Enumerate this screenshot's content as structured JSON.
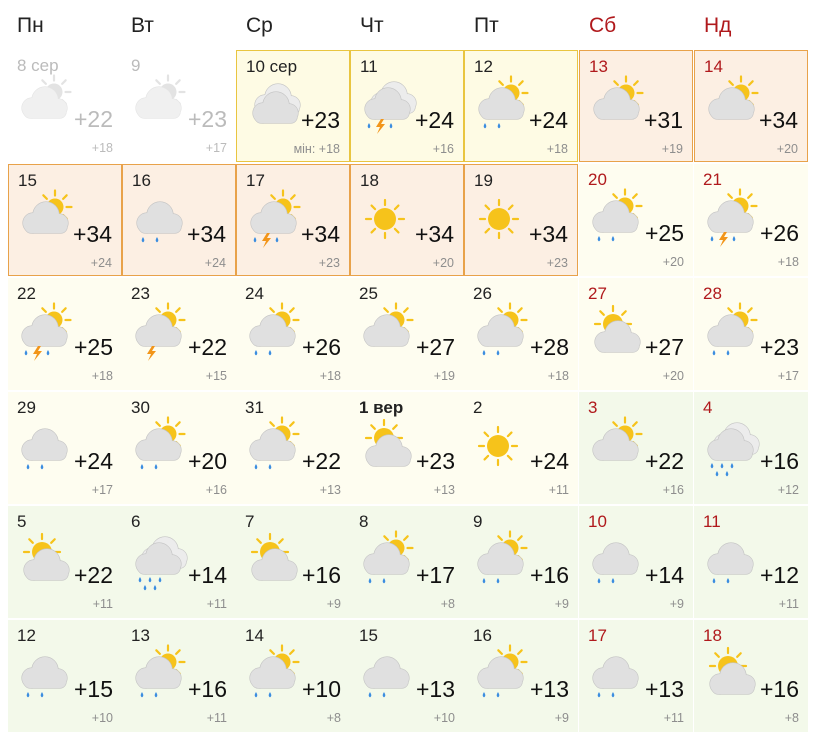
{
  "weekdays": [
    {
      "label": "Пн",
      "weekend": false
    },
    {
      "label": "Вт",
      "weekend": false
    },
    {
      "label": "Ср",
      "weekend": false
    },
    {
      "label": "Чт",
      "weekend": false
    },
    {
      "label": "Пт",
      "weekend": false
    },
    {
      "label": "Сб",
      "weekend": true
    },
    {
      "label": "Нд",
      "weekend": true
    }
  ],
  "colors": {
    "yellow_bg": "#fefbe4",
    "light_yellow_bg": "#fefdf0",
    "orange_bg": "#fcefe3",
    "green_bg": "#f3f9ea",
    "yellow_border": "#e9c540",
    "orange_border": "#e8a24a",
    "weekend_red": "#b0191c",
    "sun": "#f6c31b",
    "cloud": "#e0e0e0",
    "rain": "#3b8de0",
    "bolt": "#f2951a"
  },
  "days": [
    {
      "date": "8 сер",
      "max": "+22",
      "min": "+18",
      "icon": "partly-cloudy-sun-icon",
      "past": true,
      "bg": "#ffffff"
    },
    {
      "date": "9",
      "max": "+23",
      "min": "+17",
      "icon": "partly-cloudy-sun-icon",
      "past": true,
      "bg": "#ffffff"
    },
    {
      "date": "10 сер",
      "max": "+23",
      "min": "мін: +18",
      "icon": "cloudy-icon",
      "bg": "#fefbe4",
      "hl": "y"
    },
    {
      "date": "11",
      "max": "+24",
      "min": "+16",
      "icon": "thunderstorm-icon",
      "bg": "#fefbe4",
      "hl": "y"
    },
    {
      "date": "12",
      "max": "+24",
      "min": "+18",
      "icon": "sun-cloud-rain-icon",
      "bg": "#fefbe4",
      "hl": "y"
    },
    {
      "date": "13",
      "max": "+31",
      "min": "+19",
      "icon": "cloud-sun-icon",
      "bg": "#fcefe3",
      "hl": "o",
      "weekend": true
    },
    {
      "date": "14",
      "max": "+34",
      "min": "+20",
      "icon": "cloud-sun-icon",
      "bg": "#fcefe3",
      "hl": "o",
      "weekend": true
    },
    {
      "date": "15",
      "max": "+34",
      "min": "+24",
      "icon": "cloud-sun-icon",
      "bg": "#fcefe3",
      "hl": "o"
    },
    {
      "date": "16",
      "max": "+34",
      "min": "+24",
      "icon": "cloud-rain-icon",
      "bg": "#fcefe3",
      "hl": "o"
    },
    {
      "date": "17",
      "max": "+34",
      "min": "+23",
      "icon": "sun-thunderstorm-icon",
      "bg": "#fcefe3",
      "hl": "o"
    },
    {
      "date": "18",
      "max": "+34",
      "min": "+20",
      "icon": "sun-icon",
      "bg": "#fcefe3",
      "hl": "o"
    },
    {
      "date": "19",
      "max": "+34",
      "min": "+23",
      "icon": "sun-icon",
      "bg": "#fcefe3",
      "hl": "o"
    },
    {
      "date": "20",
      "max": "+25",
      "min": "+20",
      "icon": "sun-cloud-rain-icon",
      "bg": "#fefdf0",
      "weekend": true
    },
    {
      "date": "21",
      "max": "+26",
      "min": "+18",
      "icon": "sun-thunderstorm-icon",
      "bg": "#fefdf0",
      "weekend": true
    },
    {
      "date": "22",
      "max": "+25",
      "min": "+18",
      "icon": "sun-thunderstorm-icon",
      "bg": "#fefdf0"
    },
    {
      "date": "23",
      "max": "+22",
      "min": "+15",
      "icon": "sun-thunder-icon",
      "bg": "#fefdf0"
    },
    {
      "date": "24",
      "max": "+26",
      "min": "+18",
      "icon": "sun-cloud-rain-icon",
      "bg": "#fefdf0"
    },
    {
      "date": "25",
      "max": "+27",
      "min": "+19",
      "icon": "cloud-sun-icon",
      "bg": "#fefdf0"
    },
    {
      "date": "26",
      "max": "+28",
      "min": "+18",
      "icon": "sun-cloud-rain-icon",
      "bg": "#fefdf0"
    },
    {
      "date": "27",
      "max": "+27",
      "min": "+20",
      "icon": "sun-behind-cloud-icon",
      "bg": "#fefdf0",
      "weekend": true
    },
    {
      "date": "28",
      "max": "+23",
      "min": "+17",
      "icon": "sun-cloud-rain-icon",
      "bg": "#fefdf0",
      "weekend": true
    },
    {
      "date": "29",
      "max": "+24",
      "min": "+17",
      "icon": "cloud-rain-icon",
      "bg": "#fefdf0"
    },
    {
      "date": "30",
      "max": "+20",
      "min": "+16",
      "icon": "sun-cloud-rain-icon",
      "bg": "#fefdf0"
    },
    {
      "date": "31",
      "max": "+22",
      "min": "+13",
      "icon": "sun-cloud-rain-icon",
      "bg": "#fefdf0"
    },
    {
      "date": "1 вер",
      "max": "+23",
      "min": "+13",
      "icon": "sun-behind-cloud-icon",
      "bg": "#fefdf0",
      "bold": true
    },
    {
      "date": "2",
      "max": "+24",
      "min": "+11",
      "icon": "sun-icon",
      "bg": "#fefdf0"
    },
    {
      "date": "3",
      "max": "+22",
      "min": "+16",
      "icon": "cloud-sun-icon",
      "bg": "#f3f9ea",
      "weekend": true
    },
    {
      "date": "4",
      "max": "+16",
      "min": "+12",
      "icon": "cloud-heavy-rain-icon",
      "bg": "#f3f9ea",
      "weekend": true
    },
    {
      "date": "5",
      "max": "+22",
      "min": "+11",
      "icon": "sun-behind-cloud-icon",
      "bg": "#f3f9ea"
    },
    {
      "date": "6",
      "max": "+14",
      "min": "+11",
      "icon": "cloud-heavy-rain-icon",
      "bg": "#f3f9ea"
    },
    {
      "date": "7",
      "max": "+16",
      "min": "+9",
      "icon": "sun-behind-cloud-icon",
      "bg": "#f3f9ea"
    },
    {
      "date": "8",
      "max": "+17",
      "min": "+8",
      "icon": "sun-cloud-rain-icon",
      "bg": "#f3f9ea"
    },
    {
      "date": "9",
      "max": "+16",
      "min": "+9",
      "icon": "sun-cloud-rain-icon",
      "bg": "#f3f9ea"
    },
    {
      "date": "10",
      "max": "+14",
      "min": "+9",
      "icon": "cloud-rain-icon",
      "bg": "#f3f9ea",
      "weekend": true
    },
    {
      "date": "11",
      "max": "+12",
      "min": "+11",
      "icon": "cloud-rain-icon",
      "bg": "#f3f9ea",
      "weekend": true
    },
    {
      "date": "12",
      "max": "+15",
      "min": "+10",
      "icon": "cloud-rain-icon",
      "bg": "#f3f9ea"
    },
    {
      "date": "13",
      "max": "+16",
      "min": "+11",
      "icon": "sun-cloud-rain-icon",
      "bg": "#f3f9ea"
    },
    {
      "date": "14",
      "max": "+10",
      "min": "+8",
      "icon": "sun-cloud-rain-icon",
      "bg": "#f3f9ea"
    },
    {
      "date": "15",
      "max": "+13",
      "min": "+10",
      "icon": "cloud-rain-icon",
      "bg": "#f3f9ea"
    },
    {
      "date": "16",
      "max": "+13",
      "min": "+9",
      "icon": "sun-cloud-rain-icon",
      "bg": "#f3f9ea"
    },
    {
      "date": "17",
      "max": "+13",
      "min": "+11",
      "icon": "cloud-rain-icon",
      "bg": "#f3f9ea",
      "weekend": true
    },
    {
      "date": "18",
      "max": "+16",
      "min": "+8",
      "icon": "sun-behind-cloud-icon",
      "bg": "#f3f9ea",
      "weekend": true
    }
  ]
}
